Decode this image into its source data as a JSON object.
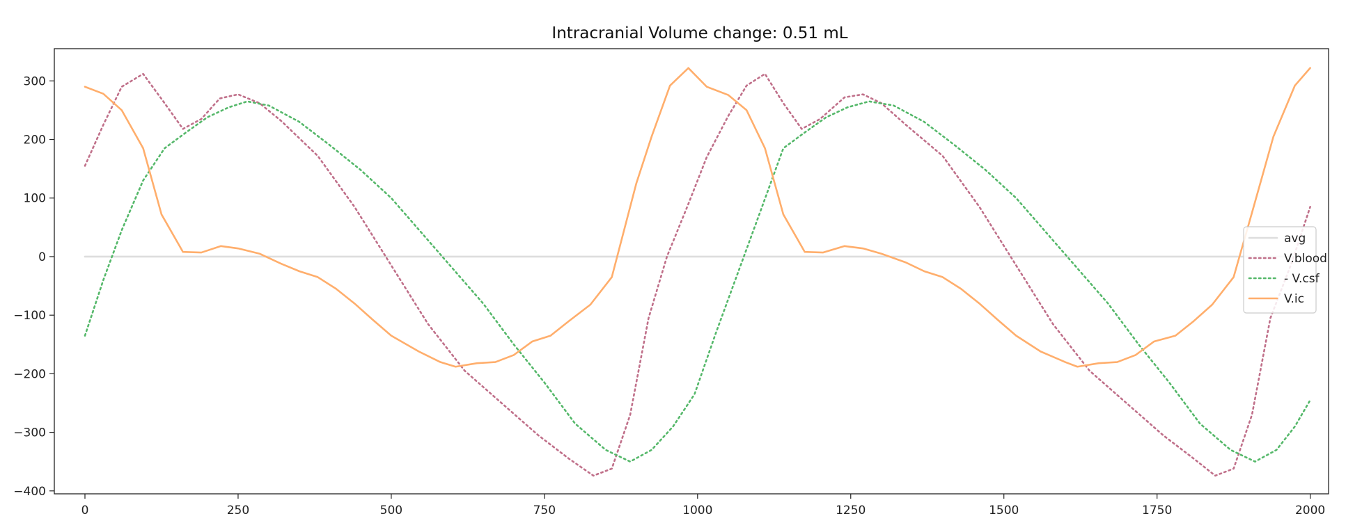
{
  "chart_data": {
    "type": "line",
    "title": "Intracranial Volume change: 0.51 mL",
    "xlabel": "",
    "ylabel": "",
    "xlim": [
      -50,
      2030
    ],
    "ylim": [
      -405,
      355
    ],
    "x_ticks": [
      0,
      250,
      500,
      750,
      1000,
      1250,
      1500,
      1750,
      2000
    ],
    "x_tick_labels": [
      "0",
      "250",
      "500",
      "750",
      "1000",
      "1250",
      "1500",
      "1750",
      "2000"
    ],
    "y_ticks": [
      300,
      200,
      100,
      0,
      -100,
      -200,
      -300,
      -400
    ],
    "y_tick_labels": [
      "300",
      "200",
      "100",
      "0",
      "−100",
      "−200",
      "−300",
      "−400"
    ],
    "grid": false,
    "legend_position": "right",
    "series": [
      {
        "name": "avg",
        "color": "#dddddd",
        "style": "solid",
        "x": [
          0,
          2000
        ],
        "y": [
          0,
          0
        ]
      },
      {
        "name": "V.blood",
        "color": "#c0708a",
        "style": "dotted",
        "x": [
          0,
          30,
          60,
          95,
          130,
          160,
          190,
          220,
          250,
          285,
          320,
          380,
          440,
          500,
          560,
          620,
          680,
          740,
          790,
          830,
          860,
          890,
          920,
          950,
          985,
          1015,
          1050,
          1080,
          1110,
          1140,
          1170,
          1200,
          1240,
          1270,
          1300,
          1340,
          1400,
          1460,
          1520,
          1580,
          1640,
          1700,
          1760,
          1810,
          1845,
          1875,
          1905,
          1935,
          1970,
          2000
        ],
        "y": [
          155,
          225,
          290,
          312,
          262,
          218,
          235,
          270,
          277,
          262,
          232,
          172,
          85,
          -15,
          -115,
          -195,
          -250,
          -305,
          -345,
          -374,
          -362,
          -270,
          -105,
          0,
          90,
          170,
          240,
          292,
          312,
          262,
          218,
          235,
          272,
          277,
          262,
          225,
          172,
          85,
          -15,
          -115,
          -195,
          -250,
          -305,
          -345,
          -374,
          -362,
          -270,
          -105,
          -10,
          85
        ]
      },
      {
        "name": "- V.csf",
        "color": "#55b86a",
        "style": "dotted",
        "x": [
          0,
          30,
          60,
          95,
          130,
          165,
          200,
          235,
          265,
          300,
          350,
          400,
          450,
          500,
          550,
          600,
          650,
          700,
          750,
          800,
          850,
          890,
          925,
          960,
          995,
          1030,
          1065,
          1100,
          1140,
          1175,
          1210,
          1245,
          1280,
          1320,
          1370,
          1420,
          1470,
          1520,
          1570,
          1620,
          1670,
          1720,
          1770,
          1820,
          1870,
          1910,
          1945,
          1975,
          2000
        ],
        "y": [
          -135,
          -40,
          45,
          130,
          185,
          212,
          238,
          255,
          265,
          258,
          230,
          190,
          148,
          100,
          40,
          -20,
          -80,
          -150,
          -215,
          -285,
          -330,
          -350,
          -330,
          -290,
          -235,
          -130,
          -30,
          70,
          185,
          212,
          238,
          255,
          265,
          258,
          230,
          190,
          148,
          100,
          40,
          -20,
          -80,
          -150,
          -215,
          -285,
          -330,
          -350,
          -330,
          -290,
          -245
        ]
      },
      {
        "name": "V.ic",
        "color": "#ffae6c",
        "style": "solid",
        "x": [
          0,
          30,
          60,
          95,
          125,
          160,
          190,
          222,
          250,
          285,
          320,
          350,
          380,
          410,
          440,
          470,
          500,
          545,
          580,
          605,
          640,
          670,
          700,
          730,
          760,
          790,
          825,
          860,
          880,
          900,
          925,
          955,
          985,
          1015,
          1050,
          1080,
          1110,
          1140,
          1175,
          1205,
          1240,
          1270,
          1300,
          1340,
          1370,
          1400,
          1430,
          1460,
          1490,
          1520,
          1560,
          1600,
          1620,
          1655,
          1685,
          1715,
          1745,
          1780,
          1810,
          1840,
          1875,
          1905,
          1940,
          1975,
          2000
        ],
        "y": [
          290,
          278,
          250,
          185,
          72,
          8,
          7,
          18,
          14,
          5,
          -12,
          -25,
          -35,
          -55,
          -80,
          -108,
          -135,
          -162,
          -180,
          -188,
          -182,
          -180,
          -168,
          -145,
          -135,
          -110,
          -82,
          -35,
          45,
          125,
          205,
          292,
          322,
          290,
          276,
          250,
          185,
          72,
          8,
          7,
          18,
          14,
          5,
          -10,
          -25,
          -35,
          -55,
          -80,
          -108,
          -135,
          -162,
          -180,
          -188,
          -182,
          -180,
          -168,
          -145,
          -135,
          -110,
          -82,
          -35,
          75,
          205,
          292,
          322
        ]
      }
    ]
  }
}
